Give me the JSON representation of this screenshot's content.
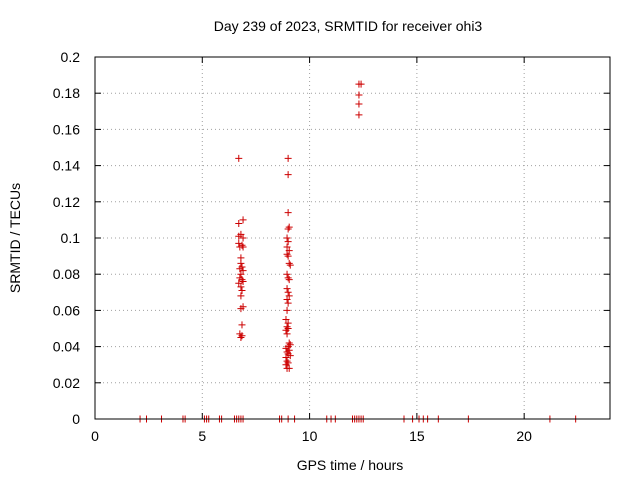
{
  "chart_data": {
    "type": "scatter",
    "title": "Day 239 of 2023, SRMTID for receiver ohi3",
    "xlabel": "GPS time / hours",
    "ylabel": "SRMTID / TECUs",
    "xlim": [
      0,
      24
    ],
    "ylim": [
      0,
      0.2
    ],
    "grid": true,
    "marker": "+",
    "color": "#cc0000",
    "x_ticks": [
      0,
      5,
      10,
      15,
      20
    ],
    "y_ticks": [
      0,
      0.02,
      0.04,
      0.06,
      0.08,
      0.1,
      0.12,
      0.14,
      0.16,
      0.18,
      0.2
    ],
    "series": [
      {
        "name": "SRMTID",
        "points": [
          [
            2.1,
            0
          ],
          [
            2.4,
            0
          ],
          [
            3.1,
            0
          ],
          [
            4.1,
            0
          ],
          [
            4.2,
            0
          ],
          [
            5.1,
            0
          ],
          [
            5.2,
            0
          ],
          [
            5.3,
            0
          ],
          [
            5.8,
            0
          ],
          [
            5.9,
            0
          ],
          [
            6.5,
            0
          ],
          [
            6.6,
            0
          ],
          [
            6.7,
            0
          ],
          [
            6.8,
            0
          ],
          [
            6.9,
            0
          ],
          [
            8.6,
            0
          ],
          [
            8.7,
            0
          ],
          [
            9.0,
            0
          ],
          [
            9.3,
            0
          ],
          [
            10.8,
            0
          ],
          [
            11.0,
            0
          ],
          [
            11.2,
            0
          ],
          [
            12.0,
            0
          ],
          [
            12.1,
            0
          ],
          [
            12.2,
            0
          ],
          [
            12.3,
            0
          ],
          [
            12.4,
            0
          ],
          [
            12.5,
            0
          ],
          [
            14.4,
            0
          ],
          [
            14.8,
            0
          ],
          [
            15.1,
            0
          ],
          [
            15.3,
            0
          ],
          [
            15.5,
            0
          ],
          [
            16.0,
            0
          ],
          [
            17.4,
            0
          ],
          [
            21.2,
            0
          ],
          [
            22.4,
            0
          ],
          [
            6.7,
            0.144
          ],
          [
            6.7,
            0.108
          ],
          [
            6.9,
            0.11
          ],
          [
            6.8,
            0.102
          ],
          [
            6.7,
            0.101
          ],
          [
            6.9,
            0.1
          ],
          [
            6.7,
            0.097
          ],
          [
            6.85,
            0.096
          ],
          [
            6.75,
            0.095
          ],
          [
            6.9,
            0.095
          ],
          [
            6.8,
            0.089
          ],
          [
            6.8,
            0.086
          ],
          [
            6.85,
            0.084
          ],
          [
            6.75,
            0.083
          ],
          [
            6.9,
            0.082
          ],
          [
            6.8,
            0.08
          ],
          [
            6.75,
            0.078
          ],
          [
            6.85,
            0.077
          ],
          [
            6.9,
            0.076
          ],
          [
            6.7,
            0.075
          ],
          [
            6.8,
            0.073
          ],
          [
            6.85,
            0.071
          ],
          [
            6.8,
            0.068
          ],
          [
            6.9,
            0.062
          ],
          [
            6.8,
            0.061
          ],
          [
            6.85,
            0.052
          ],
          [
            6.75,
            0.047
          ],
          [
            6.85,
            0.046
          ],
          [
            6.8,
            0.045
          ],
          [
            9.0,
            0.144
          ],
          [
            9.0,
            0.135
          ],
          [
            9.0,
            0.114
          ],
          [
            9.05,
            0.106
          ],
          [
            9.0,
            0.105
          ],
          [
            8.95,
            0.1
          ],
          [
            9.0,
            0.098
          ],
          [
            8.95,
            0.095
          ],
          [
            9.05,
            0.093
          ],
          [
            8.95,
            0.091
          ],
          [
            9.0,
            0.09
          ],
          [
            9.05,
            0.086
          ],
          [
            9.1,
            0.085
          ],
          [
            8.95,
            0.08
          ],
          [
            9.0,
            0.078
          ],
          [
            9.05,
            0.077
          ],
          [
            8.95,
            0.072
          ],
          [
            9.0,
            0.07
          ],
          [
            9.05,
            0.068
          ],
          [
            8.95,
            0.066
          ],
          [
            9.0,
            0.064
          ],
          [
            8.95,
            0.06
          ],
          [
            8.9,
            0.055
          ],
          [
            9.0,
            0.053
          ],
          [
            8.95,
            0.051
          ],
          [
            9.0,
            0.05
          ],
          [
            8.9,
            0.049
          ],
          [
            8.95,
            0.047
          ],
          [
            9.05,
            0.042
          ],
          [
            9.1,
            0.041
          ],
          [
            9.0,
            0.04
          ],
          [
            8.9,
            0.039
          ],
          [
            9.05,
            0.038
          ],
          [
            8.95,
            0.037
          ],
          [
            9.0,
            0.036
          ],
          [
            9.1,
            0.035
          ],
          [
            8.9,
            0.034
          ],
          [
            8.95,
            0.032
          ],
          [
            9.0,
            0.031
          ],
          [
            8.9,
            0.03
          ],
          [
            8.95,
            0.028
          ],
          [
            9.05,
            0.028
          ],
          [
            12.3,
            0.185
          ],
          [
            12.4,
            0.185
          ],
          [
            12.3,
            0.179
          ],
          [
            12.3,
            0.174
          ],
          [
            12.3,
            0.168
          ]
        ]
      }
    ]
  }
}
